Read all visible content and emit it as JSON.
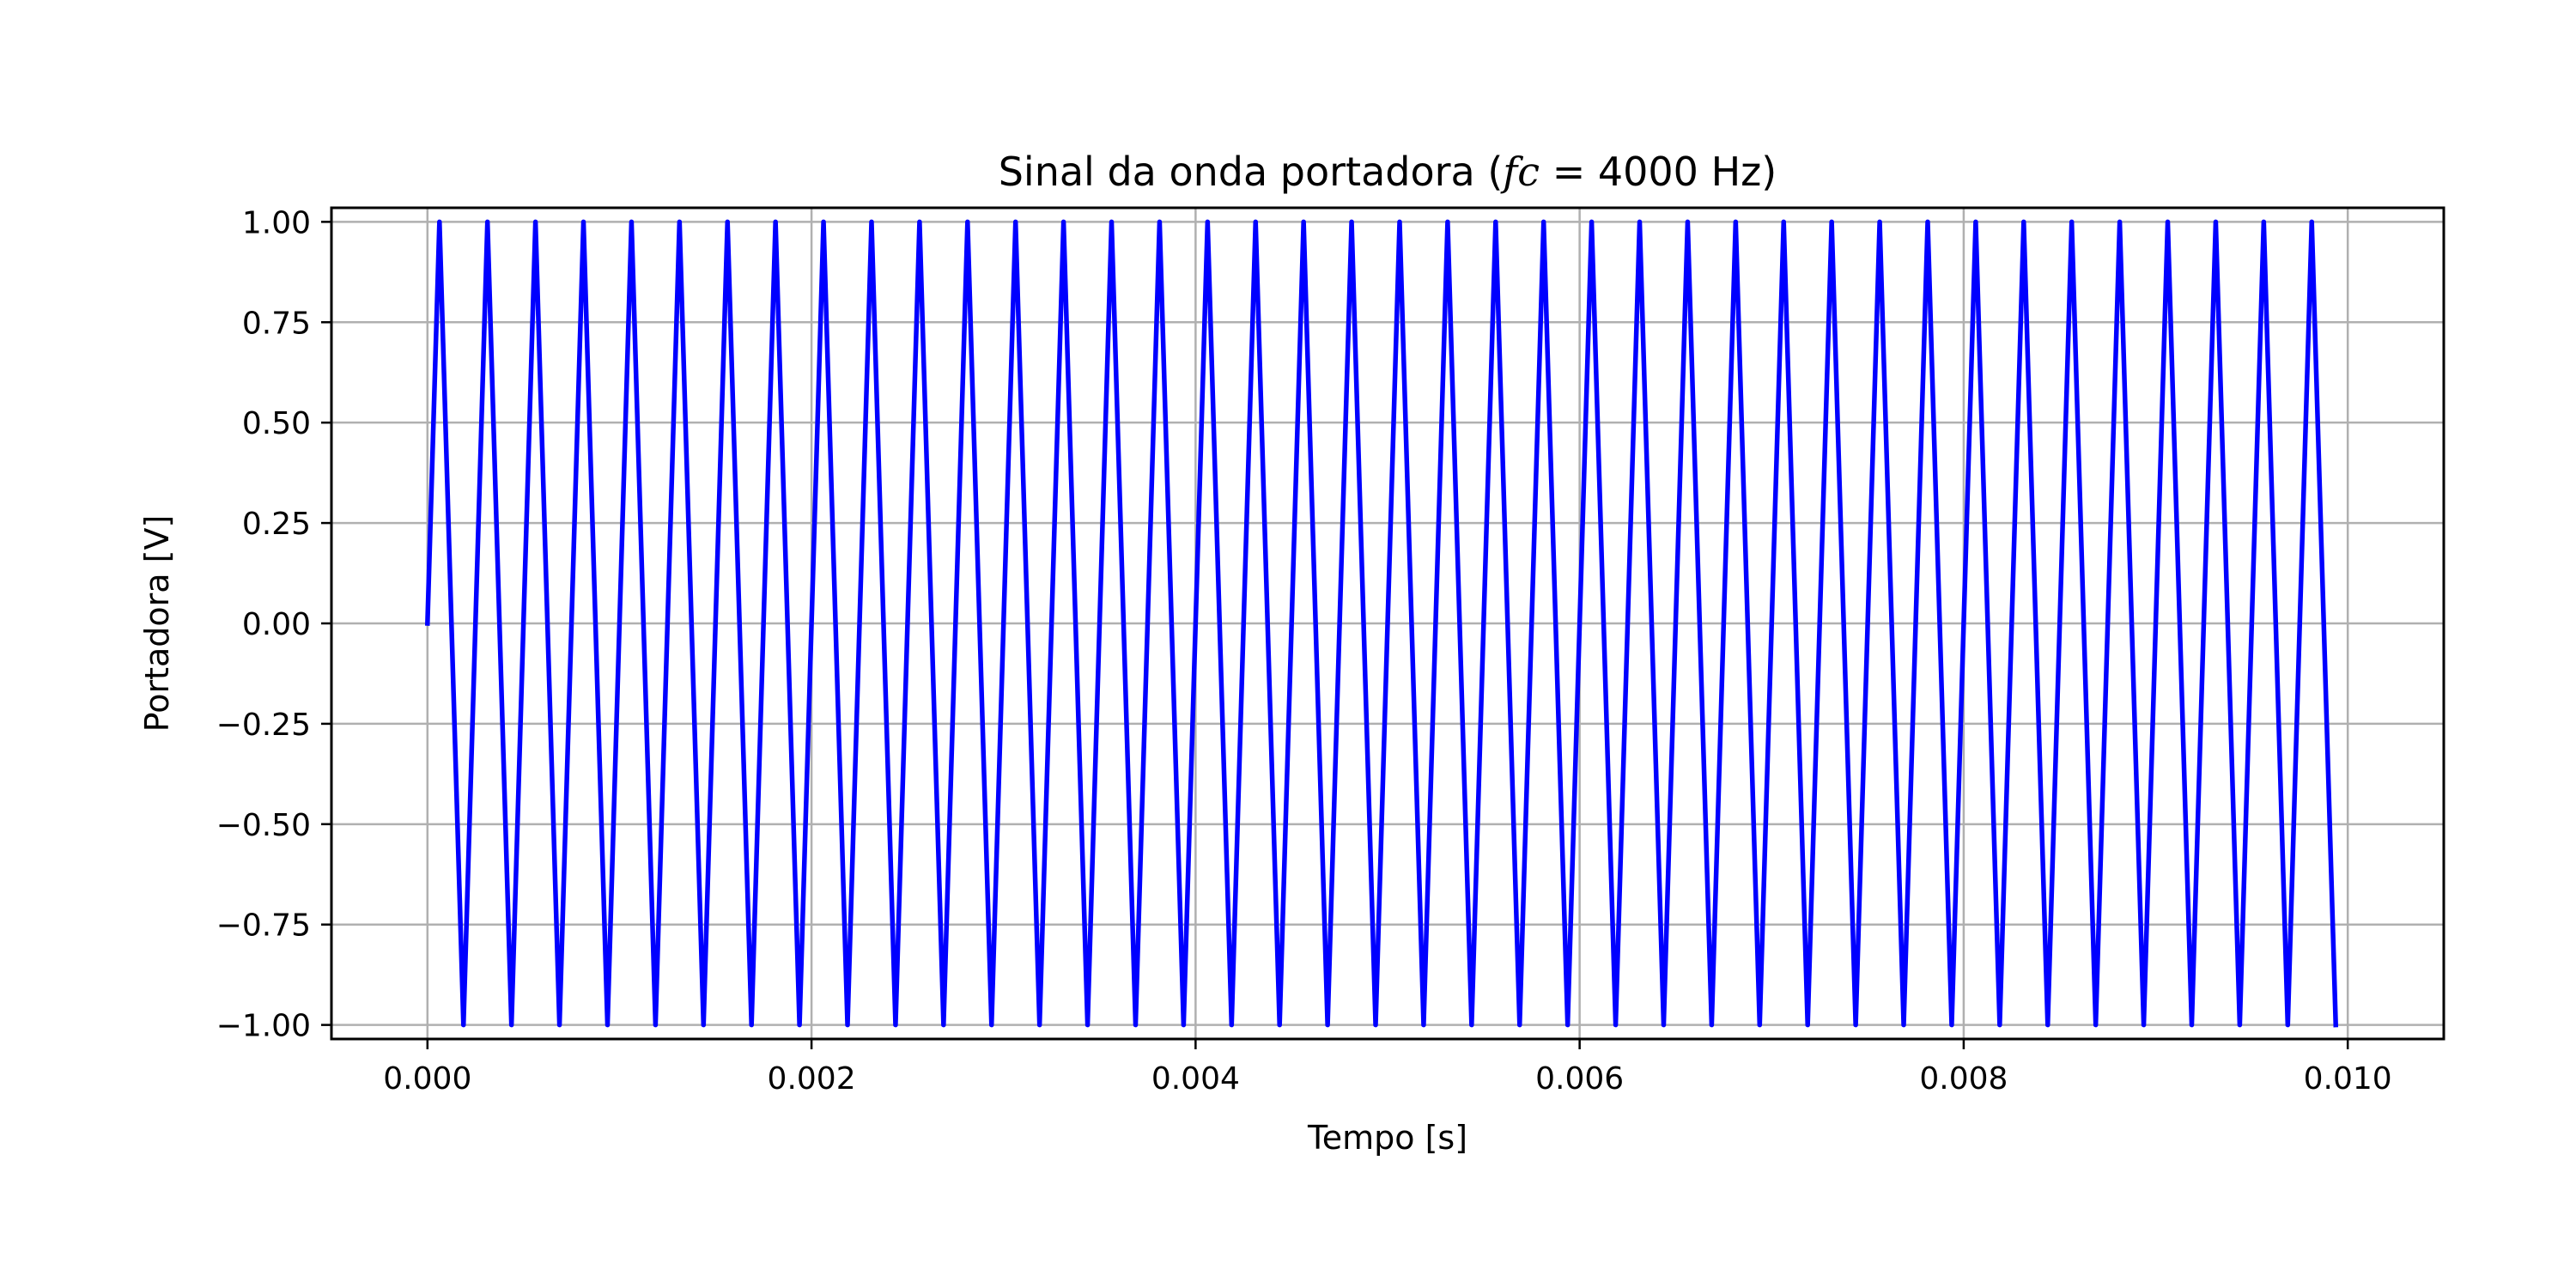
{
  "chart_data": {
    "type": "line",
    "title_parts": {
      "prefix": "Sinal da onda portadora (",
      "math_var": "fc",
      "math_eq": " = ",
      "suffix": "4000 Hz)"
    },
    "xlabel": "Tempo [s]",
    "ylabel": "Portadora [V]",
    "xlim": [
      -0.0005,
      0.0105
    ],
    "ylim": [
      -1.035,
      1.035
    ],
    "xticks": [
      0.0,
      0.002,
      0.004,
      0.006,
      0.008,
      0.01
    ],
    "xtick_labels": [
      "0.000",
      "0.002",
      "0.004",
      "0.006",
      "0.008",
      "0.010"
    ],
    "yticks": [
      1.0,
      0.75,
      0.5,
      0.25,
      0.0,
      -0.25,
      -0.5,
      -0.75,
      -1.0
    ],
    "ytick_labels": [
      "1.00",
      "0.75",
      "0.50",
      "0.25",
      "0.00",
      "−0.25",
      "−0.50",
      "−0.75",
      "−1.00"
    ],
    "grid": true,
    "series": [
      {
        "color": "#0000ff",
        "signal": {
          "function": "sin",
          "amplitude": 1.0,
          "frequency_hz": 4000,
          "sample_step_s": 6.25e-05,
          "t_start": 0.0,
          "t_end": 0.0099375
        }
      }
    ]
  }
}
